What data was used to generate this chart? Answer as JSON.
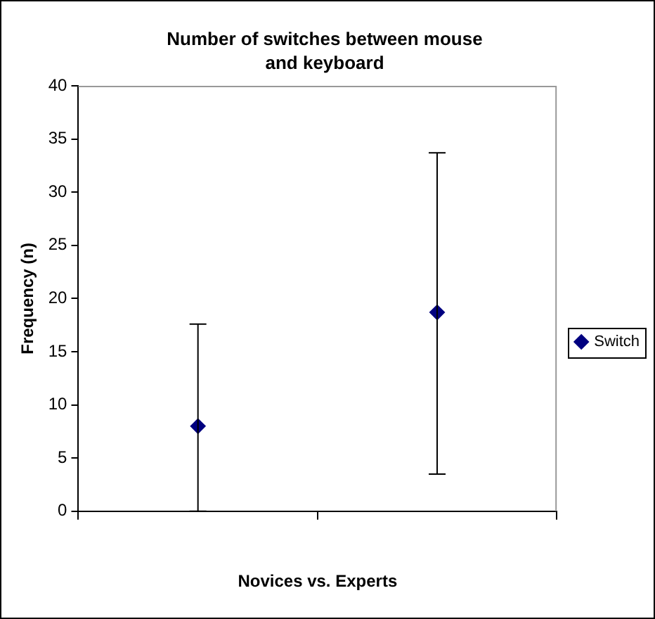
{
  "chart_data": {
    "type": "scatter",
    "title": "Number of switches between mouse and keyboard",
    "xlabel": "Novices vs. Experts",
    "ylabel": "Frequency (n)",
    "categories": [
      null,
      null
    ],
    "series": [
      {
        "name": "Switch",
        "color": "#000080",
        "values": [
          8,
          18.7
        ],
        "errors": [
          [
            0,
            17.6
          ],
          [
            3.5,
            33.7
          ]
        ]
      }
    ],
    "ylim": [
      0,
      40
    ],
    "yticks": [
      0,
      5,
      10,
      15,
      20,
      25,
      30,
      35,
      40
    ],
    "grid": false,
    "legend": "right",
    "marker": "diamond",
    "tick_labels": "y"
  }
}
